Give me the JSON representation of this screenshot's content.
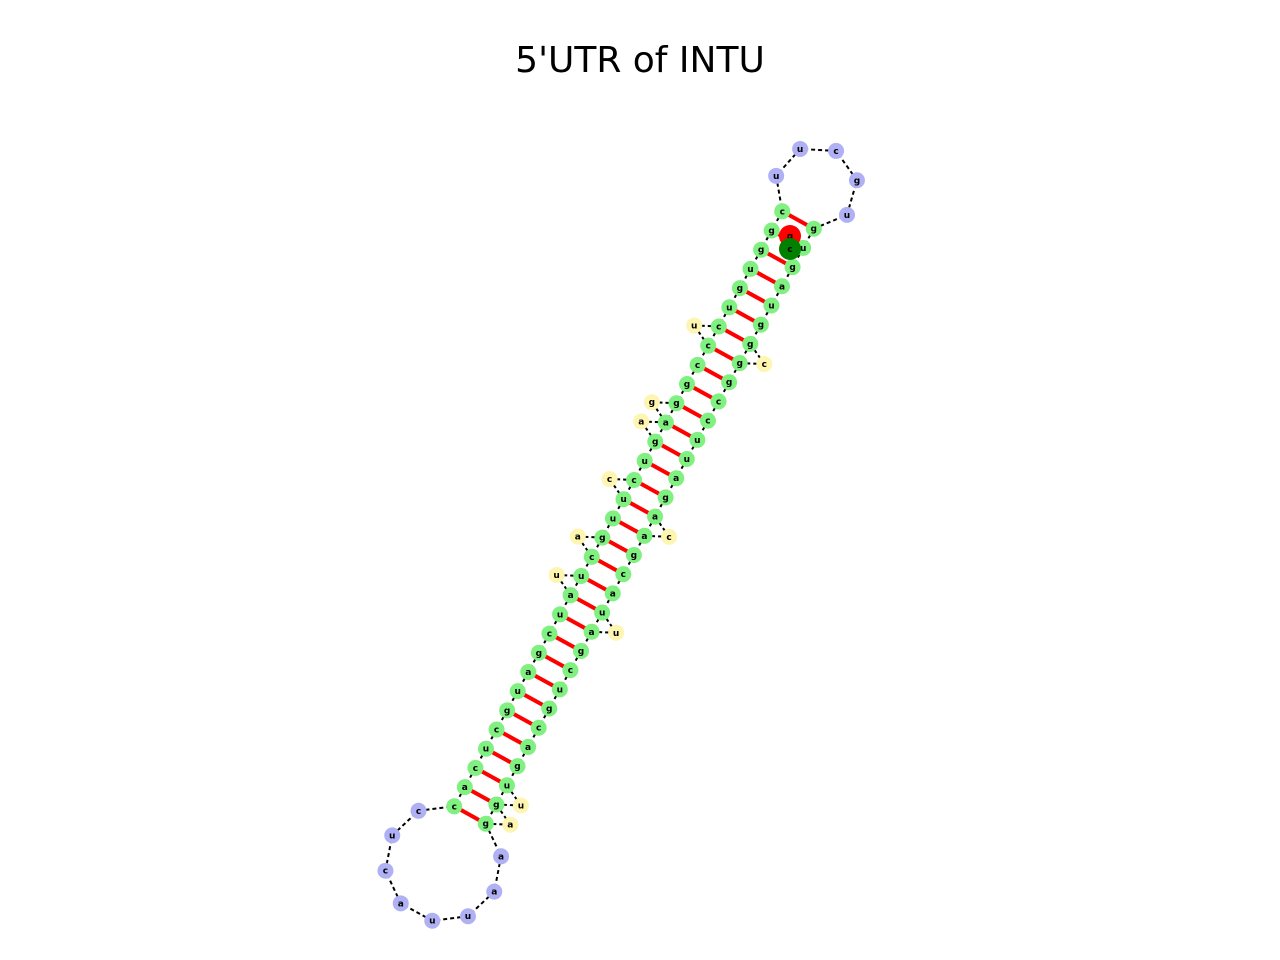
{
  "title": "5'UTR of INTU",
  "colors": {
    "stem": "#80f080",
    "loop": "#b0b0f5",
    "bulge": "#fdf5b0",
    "pair_bond": "#ff0000",
    "backbone": "#000000",
    "five_prime": "#ff0000",
    "three_prime": "#008000"
  },
  "top_loop": [
    "u",
    "g",
    "c",
    "u",
    "u"
  ],
  "bottom_loop": [
    "a",
    "a",
    "u",
    "u",
    "a",
    "c",
    "u",
    "c"
  ],
  "stem_pairs": [
    [
      "g",
      "c"
    ],
    [
      "u",
      "g"
    ],
    [
      "g",
      "g"
    ],
    [
      "a",
      "u"
    ],
    [
      "u",
      "g"
    ],
    [
      "g",
      "u"
    ],
    [
      "g",
      "c"
    ],
    [
      "g",
      "c"
    ],
    [
      "g",
      "c"
    ],
    [
      "c",
      "g"
    ],
    [
      "c",
      "g"
    ],
    [
      "u",
      "a"
    ],
    [
      "u",
      "g"
    ],
    [
      "a",
      "u"
    ],
    [
      "g",
      "c"
    ],
    [
      "a",
      "u"
    ],
    [
      "a",
      "u"
    ],
    [
      "g",
      "g"
    ],
    [
      "c",
      "c"
    ],
    [
      "a",
      "u"
    ],
    [
      "u",
      "a"
    ],
    [
      "a",
      "u"
    ],
    [
      "g",
      "c"
    ],
    [
      "c",
      "g"
    ],
    [
      "u",
      "a"
    ],
    [
      "g",
      "u"
    ],
    [
      "c",
      "g"
    ],
    [
      "a",
      "c"
    ],
    [
      "g",
      "u"
    ],
    [
      "u",
      "c"
    ],
    [
      "g",
      "a"
    ],
    [
      "g",
      "c"
    ]
  ],
  "left_bulges": [
    {
      "after": 6,
      "base": "c"
    },
    {
      "after": 15,
      "base": "c"
    },
    {
      "after": 20,
      "base": "u"
    },
    {
      "after": 29,
      "base": "u"
    },
    {
      "after": 30,
      "base": "a"
    }
  ],
  "right_bulges": [
    {
      "after": 6,
      "base": "u"
    },
    {
      "after": 10,
      "base": "g"
    },
    {
      "after": 11,
      "base": "a"
    },
    {
      "after": 14,
      "base": "c"
    },
    {
      "after": 17,
      "base": "a"
    },
    {
      "after": 19,
      "base": "u"
    }
  ],
  "terminal_labels": {
    "five_prime": "g",
    "three_prime": "c"
  }
}
